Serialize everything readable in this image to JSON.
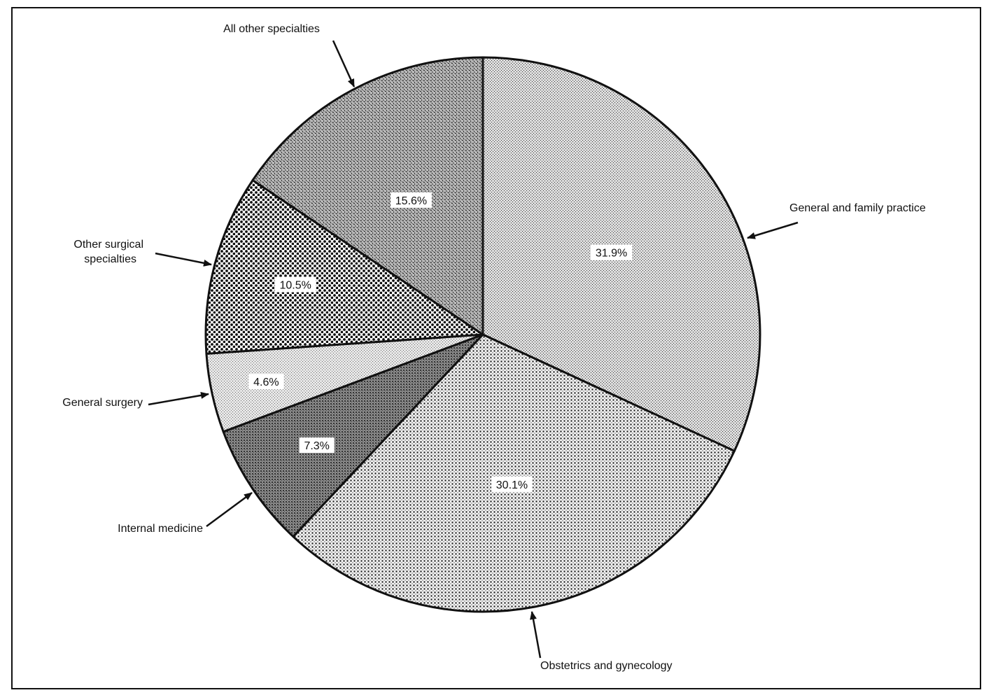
{
  "chart_data": {
    "type": "pie",
    "slices": [
      {
        "label": "General and family practice",
        "value": 31.9,
        "value_label": "31.9%",
        "pattern": "pat-fine"
      },
      {
        "label": "Obstetrics and gynecology",
        "value": 30.1,
        "value_label": "30.1%",
        "pattern": "pat-dots-med"
      },
      {
        "label": "Internal medicine",
        "value": 7.3,
        "value_label": "7.3%",
        "pattern": "pat-dark"
      },
      {
        "label": "General surgery",
        "value": 4.6,
        "value_label": "4.6%",
        "pattern": "pat-light"
      },
      {
        "label": "Other surgical specialties",
        "value": 10.5,
        "value_label": "10.5%",
        "pattern": "pat-dots-coarse"
      },
      {
        "label": "All other specialties",
        "value": 15.6,
        "value_label": "15.6%",
        "pattern": "pat-cross"
      }
    ],
    "start": "12 o'clock",
    "direction": "clockwise",
    "legend": "none"
  }
}
